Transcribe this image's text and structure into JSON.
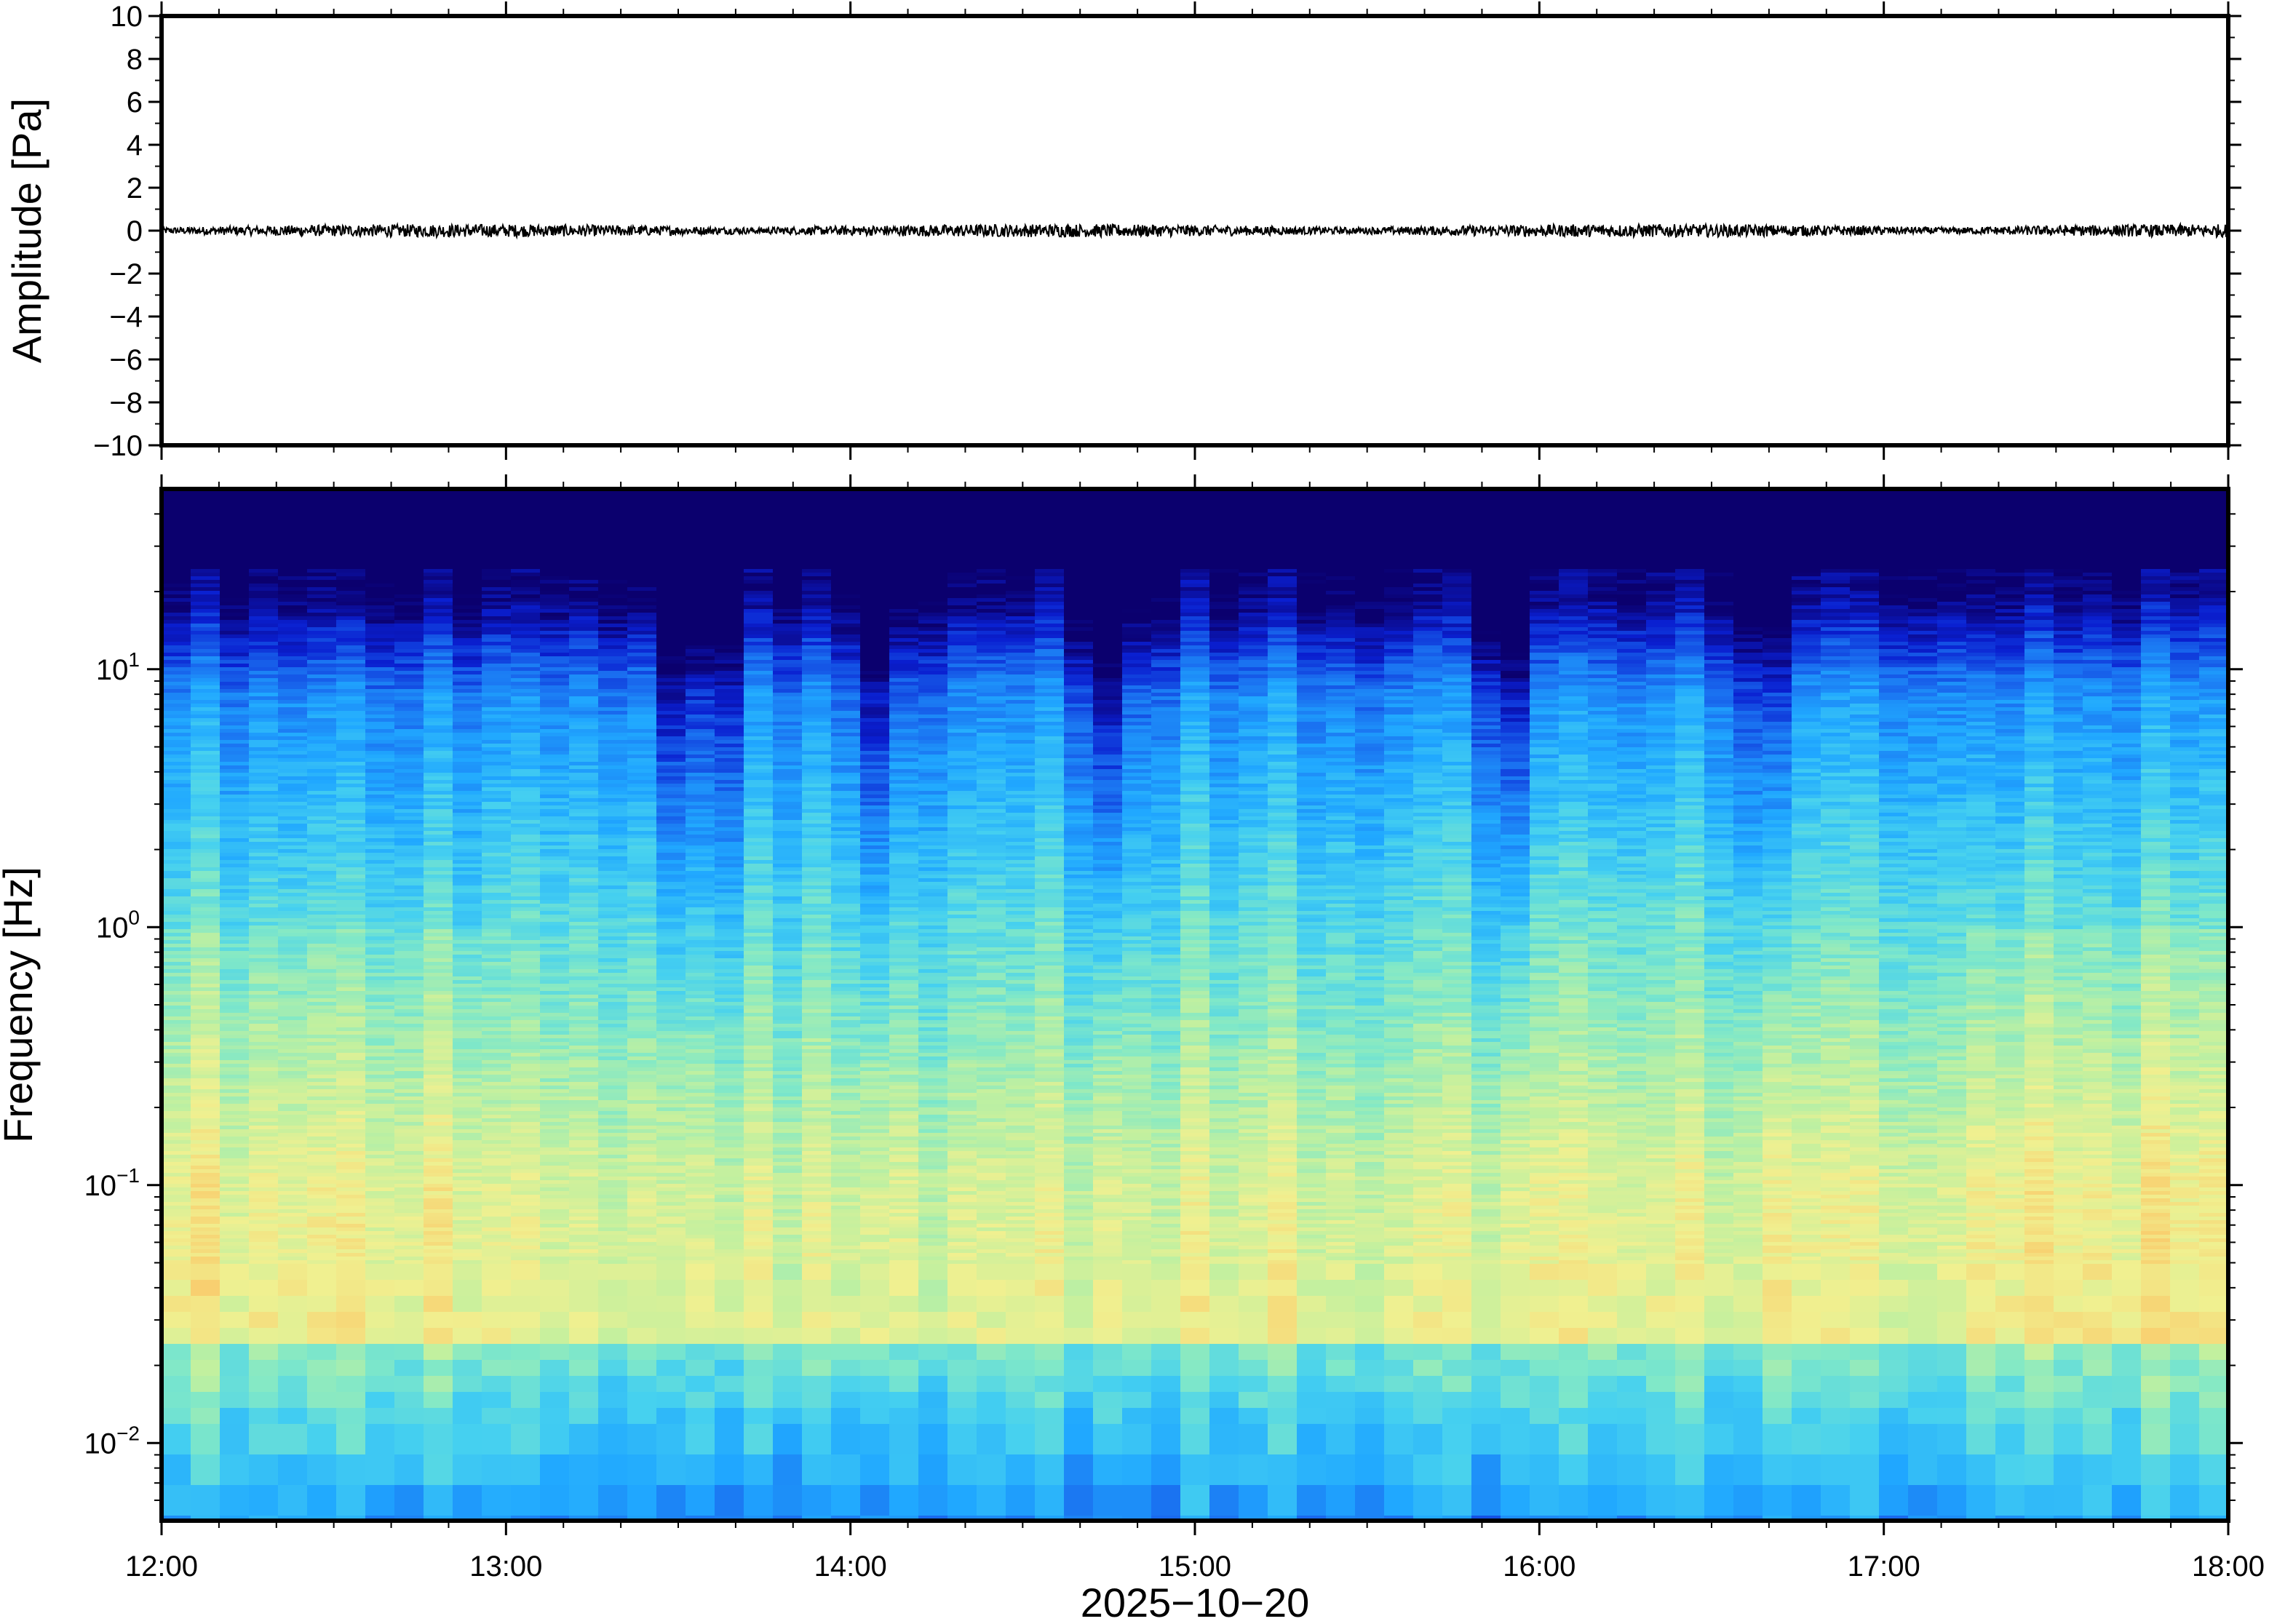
{
  "chart_data": [
    {
      "type": "line",
      "ylabel": "Amplitude [Pa]",
      "ylim": [
        -10,
        10
      ],
      "yticks": [
        10,
        8,
        6,
        4,
        2,
        0,
        -2,
        -4,
        -6,
        -8,
        -10
      ],
      "ytick_labels": [
        "10",
        "8",
        "6",
        "4",
        "2",
        "0",
        "−2",
        "−4",
        "−6",
        "−8",
        "−10"
      ],
      "x_range": [
        "12:00",
        "18:00"
      ],
      "series_description_values": {
        "mean": 0,
        "approx_peak_abs": 0.3
      },
      "line_color": "#000000"
    },
    {
      "type": "heatmap",
      "ylabel": "Frequency [Hz]",
      "yscale": "log",
      "ylim": [
        0.005,
        50
      ],
      "yticks": [
        0.01,
        0.1,
        1,
        10
      ],
      "ytick_labels": [
        {
          "base": "10",
          "exp": "−2"
        },
        {
          "base": "10",
          "exp": "−1"
        },
        {
          "base": "10",
          "exp": "0"
        },
        {
          "base": "10",
          "exp": "1"
        }
      ],
      "xlabel": "2025−10−20",
      "x_tick_labels": [
        "12:00",
        "13:00",
        "14:00",
        "15:00",
        "16:00",
        "17:00",
        "18:00"
      ],
      "colormap": [
        "#0b006e",
        "#0a1fd0",
        "#1a6ff0",
        "#20a8ff",
        "#45d0f0",
        "#80e8c8",
        "#c0f0a0",
        "#f0f090",
        "#f8d070",
        "#f8a060"
      ],
      "dark_columns_approx": [
        "13:30",
        "13:36",
        "14:05",
        "14:45",
        "15:55",
        "16:40"
      ]
    }
  ]
}
